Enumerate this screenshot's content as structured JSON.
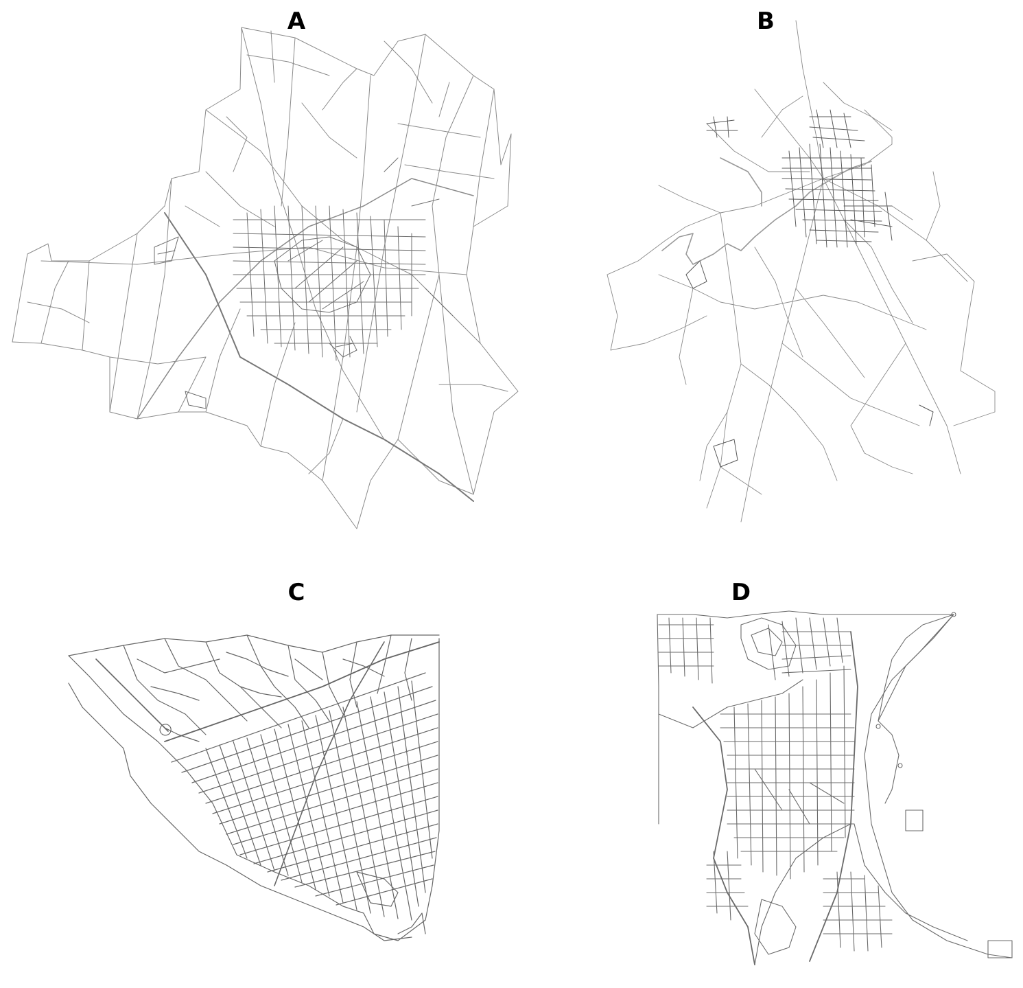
{
  "panels": [
    {
      "label": "A",
      "road_color": "#8a8a8a"
    },
    {
      "label": "B",
      "road_color": "#8a8a8a"
    },
    {
      "label": "C",
      "road_color": "#666666"
    },
    {
      "label": "D",
      "road_color": "#6a6a6a"
    }
  ]
}
